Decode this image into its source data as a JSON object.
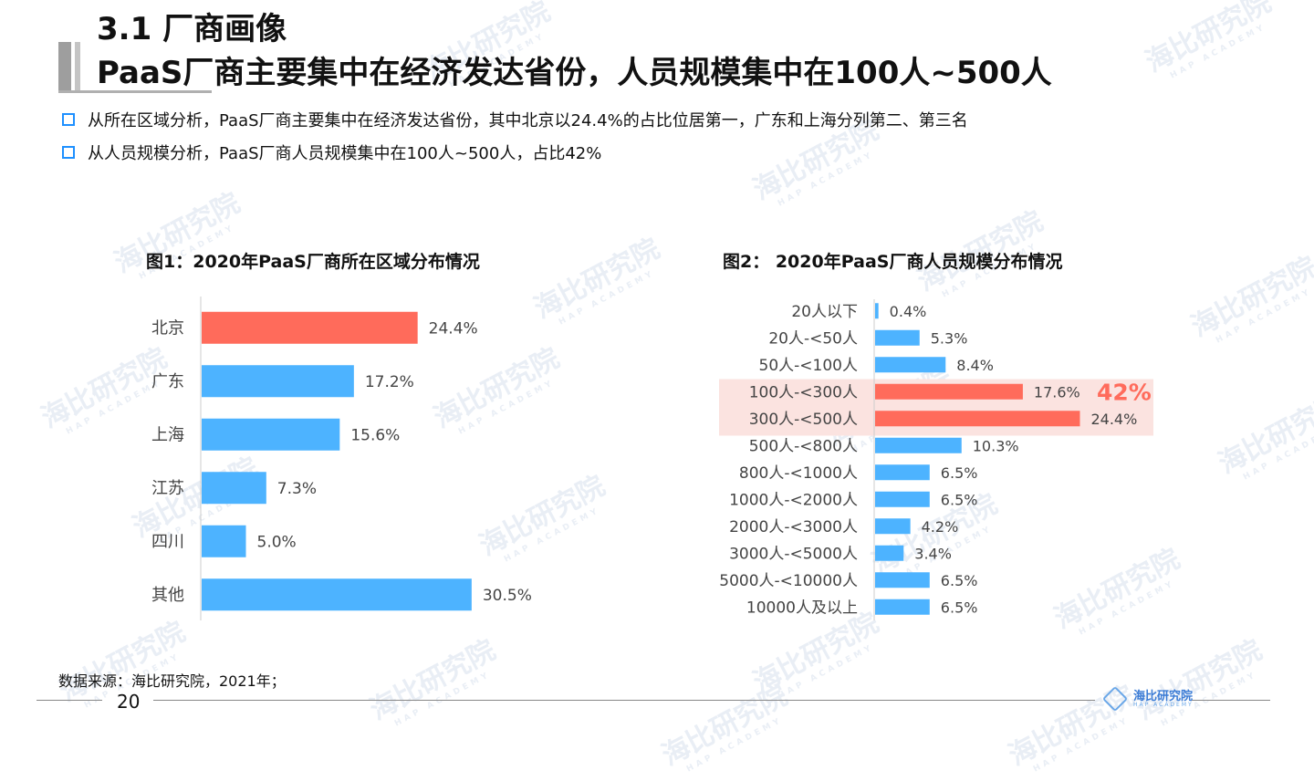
{
  "slide": {
    "section": "3.1 厂商画像",
    "headline": "PaaS厂商主要集中在经济发达省份，人员规模集中在100人~500人",
    "bullets": [
      "从所在区域分析，PaaS厂商主要集中在经济发达省份，其中北京以24.4%的占比位居第一，广东和上海分列第二、第三名",
      "从人员规模分析，PaaS厂商人员规模集中在100人~500人，占比42%"
    ],
    "source": "数据来源：海比研究院，2021年；",
    "page_number": "20",
    "watermark_text": "海比研究院",
    "watermark_sub": "HAP ACADEMY",
    "logo_text": "海比研究院",
    "logo_sub": "HAP ACADEMY"
  },
  "chart_data": [
    {
      "type": "bar",
      "orientation": "horizontal",
      "title": "图1：2020年PaaS厂商所在区域分布情况",
      "categories": [
        "北京",
        "广东",
        "上海",
        "江苏",
        "四川",
        "其他"
      ],
      "values": [
        24.4,
        17.2,
        15.6,
        7.3,
        5.0,
        30.5
      ],
      "labels": [
        "24.4%",
        "17.2%",
        "15.6%",
        "7.3%",
        "5.0%",
        "30.5%"
      ],
      "highlight_index": [
        0
      ],
      "colors": {
        "default": "#4db3ff",
        "highlight": "#ff6b5b"
      }
    },
    {
      "type": "bar",
      "orientation": "horizontal",
      "title": "图2： 2020年PaaS厂商人员规模分布情况",
      "categories": [
        "20人以下",
        "20人-<50人",
        "50人-<100人",
        "100人-<300人",
        "300人-<500人",
        "500人-<800人",
        "800人-<1000人",
        "1000人-<2000人",
        "2000人-<3000人",
        "3000人-<5000人",
        "5000人-<10000人",
        "10000人及以上"
      ],
      "values": [
        0.4,
        5.3,
        8.4,
        17.6,
        24.4,
        10.3,
        6.5,
        6.5,
        4.2,
        3.4,
        6.5,
        6.5
      ],
      "labels": [
        "0.4%",
        "5.3%",
        "8.4%",
        "17.6%",
        "24.4%",
        "10.3%",
        "6.5%",
        "6.5%",
        "4.2%",
        "3.4%",
        "6.5%",
        "6.5%"
      ],
      "highlight_index": [
        3,
        4
      ],
      "highlight_annotation": "42%",
      "colors": {
        "default": "#4db3ff",
        "highlight": "#ff6b5b",
        "band": "#fbe3e0",
        "annotation": "#ff6b5b"
      }
    }
  ]
}
